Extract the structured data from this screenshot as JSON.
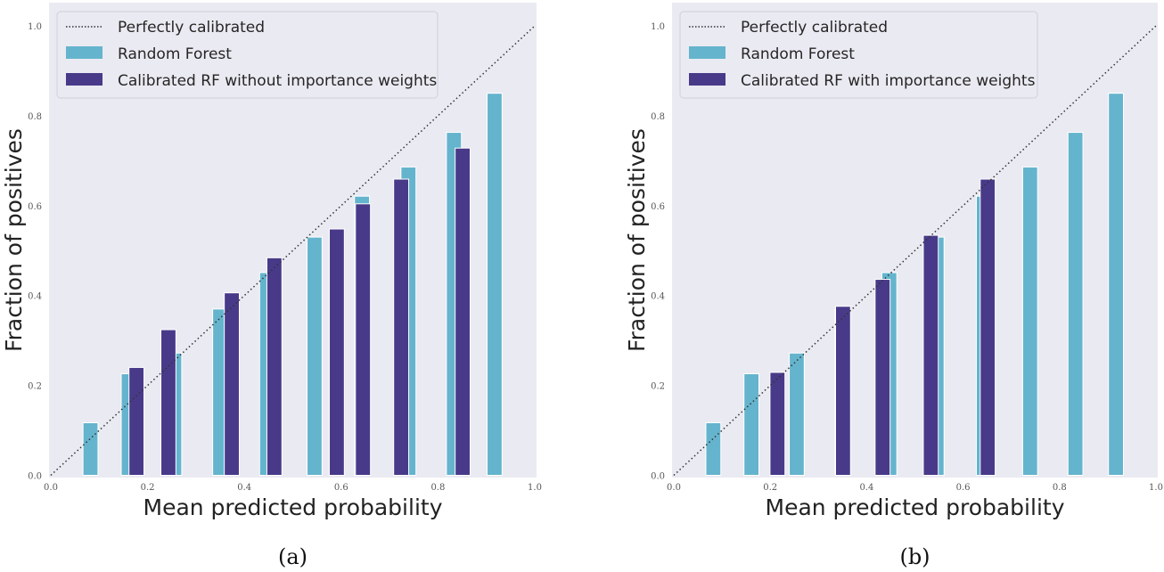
{
  "colors": {
    "background": "#eaeaf2",
    "random_forest": "#65b4cd",
    "calibrated": "#483a89",
    "diagonal": "#333333"
  },
  "chart_data": [
    {
      "type": "bar",
      "caption": "(a)",
      "xlabel": "Mean predicted probability",
      "ylabel": "Fraction of positives",
      "xlim": [
        0,
        1
      ],
      "ylim": [
        0,
        1.05
      ],
      "xticks": [
        "0.0",
        "0.2",
        "0.4",
        "0.6",
        "0.8",
        "1.0"
      ],
      "yticks": [
        "0.0",
        "0.2",
        "0.4",
        "0.6",
        "0.8",
        "1.0"
      ],
      "grid": false,
      "legend_position": "top-left",
      "reference_line": {
        "name": "Perfectly calibrated",
        "x": [
          0,
          1
        ],
        "y": [
          0,
          1
        ]
      },
      "series": [
        {
          "name": "Random Forest",
          "x": [
            0.082,
            0.161,
            0.255,
            0.35,
            0.447,
            0.545,
            0.643,
            0.739,
            0.833,
            0.917
          ],
          "y": [
            0.117,
            0.226,
            0.272,
            0.37,
            0.451,
            0.53,
            0.621,
            0.686,
            0.763,
            0.85
          ]
        },
        {
          "name": "Calibrated RF without importance weights",
          "x": [
            0.177,
            0.243,
            0.374,
            0.462,
            0.591,
            0.645,
            0.724,
            0.851
          ],
          "y": [
            0.24,
            0.324,
            0.406,
            0.484,
            0.548,
            0.604,
            0.659,
            0.728
          ]
        }
      ]
    },
    {
      "type": "bar",
      "caption": "(b)",
      "xlabel": "Mean predicted probability",
      "ylabel": "Fraction of positives",
      "xlim": [
        0,
        1
      ],
      "ylim": [
        0,
        1.05
      ],
      "xticks": [
        "0.0",
        "0.2",
        "0.4",
        "0.6",
        "0.8",
        "1.0"
      ],
      "yticks": [
        "0.0",
        "0.2",
        "0.4",
        "0.6",
        "0.8",
        "1.0"
      ],
      "grid": false,
      "legend_position": "top-left",
      "reference_line": {
        "name": "Perfectly calibrated",
        "x": [
          0,
          1
        ],
        "y": [
          0,
          1
        ]
      },
      "series": [
        {
          "name": "Random Forest",
          "x": [
            0.082,
            0.161,
            0.255,
            0.35,
            0.447,
            0.545,
            0.643,
            0.739,
            0.833,
            0.917
          ],
          "y": [
            0.117,
            0.226,
            0.272,
            0.37,
            0.451,
            0.53,
            0.621,
            0.686,
            0.763,
            0.85
          ]
        },
        {
          "name": "Calibrated RF with importance weights",
          "x": [
            0.215,
            0.351,
            0.433,
            0.533,
            0.651
          ],
          "y": [
            0.229,
            0.376,
            0.436,
            0.534,
            0.659
          ]
        }
      ]
    }
  ]
}
